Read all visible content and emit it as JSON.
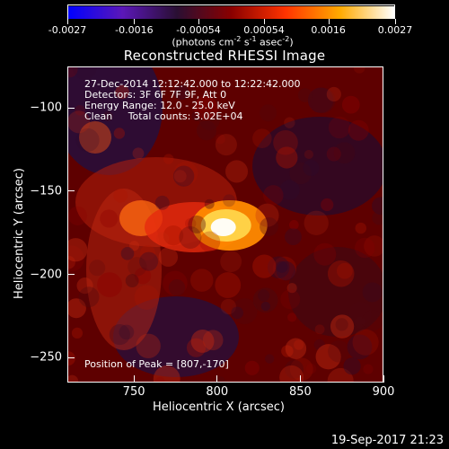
{
  "chart_data": {
    "type": "heatmap",
    "title": "Reconstructed RHESSI Image",
    "xlabel": "Heliocentric X (arcsec)",
    "ylabel": "Heliocentric Y (arcsec)",
    "xlim": [
      710,
      900
    ],
    "ylim": [
      -265,
      -75
    ],
    "x_ticks": [
      750,
      800,
      850,
      900
    ],
    "y_ticks": [
      -100,
      -150,
      -200,
      -250
    ],
    "color_scale": {
      "min": -0.0027,
      "max": 0.0027,
      "tick_values": [
        -0.0027,
        -0.0016,
        -0.00054,
        0.00054,
        0.0016,
        0.0027
      ],
      "tick_labels": [
        "-0.0027",
        "-0.0016",
        "-0.00054",
        "0.00054",
        "0.0016",
        "0.0027"
      ],
      "unit_label": "(photons cm-2 s-1 asec-2)",
      "colors": [
        "#0000ff",
        "#5b17b8",
        "#2a0f33",
        "#8a0000",
        "#ff3300",
        "#ffaa00",
        "#ffffff"
      ]
    },
    "annotations": [
      "27-Dec-2014 12:12:42.000 to 12:22:42.000",
      "Detectors: 3F 6F 7F 9F, Att 0",
      "Energy Range: 12.0 - 25.0 keV",
      "Clean     Total counts: 3.02E+04",
      "Position of Peak = [807,-170]"
    ],
    "peak": {
      "x": 807,
      "y": -170
    },
    "date_stamp": "19-Sep-2017 21:23"
  },
  "ui": {
    "cb_unit_prefix": "(photons cm",
    "cb_unit_exp1": "-2",
    "cb_unit_mid1": " s",
    "cb_unit_exp2": "-1",
    "cb_unit_mid2": " asec",
    "cb_unit_exp3": "-2",
    "cb_unit_suffix": ")"
  }
}
